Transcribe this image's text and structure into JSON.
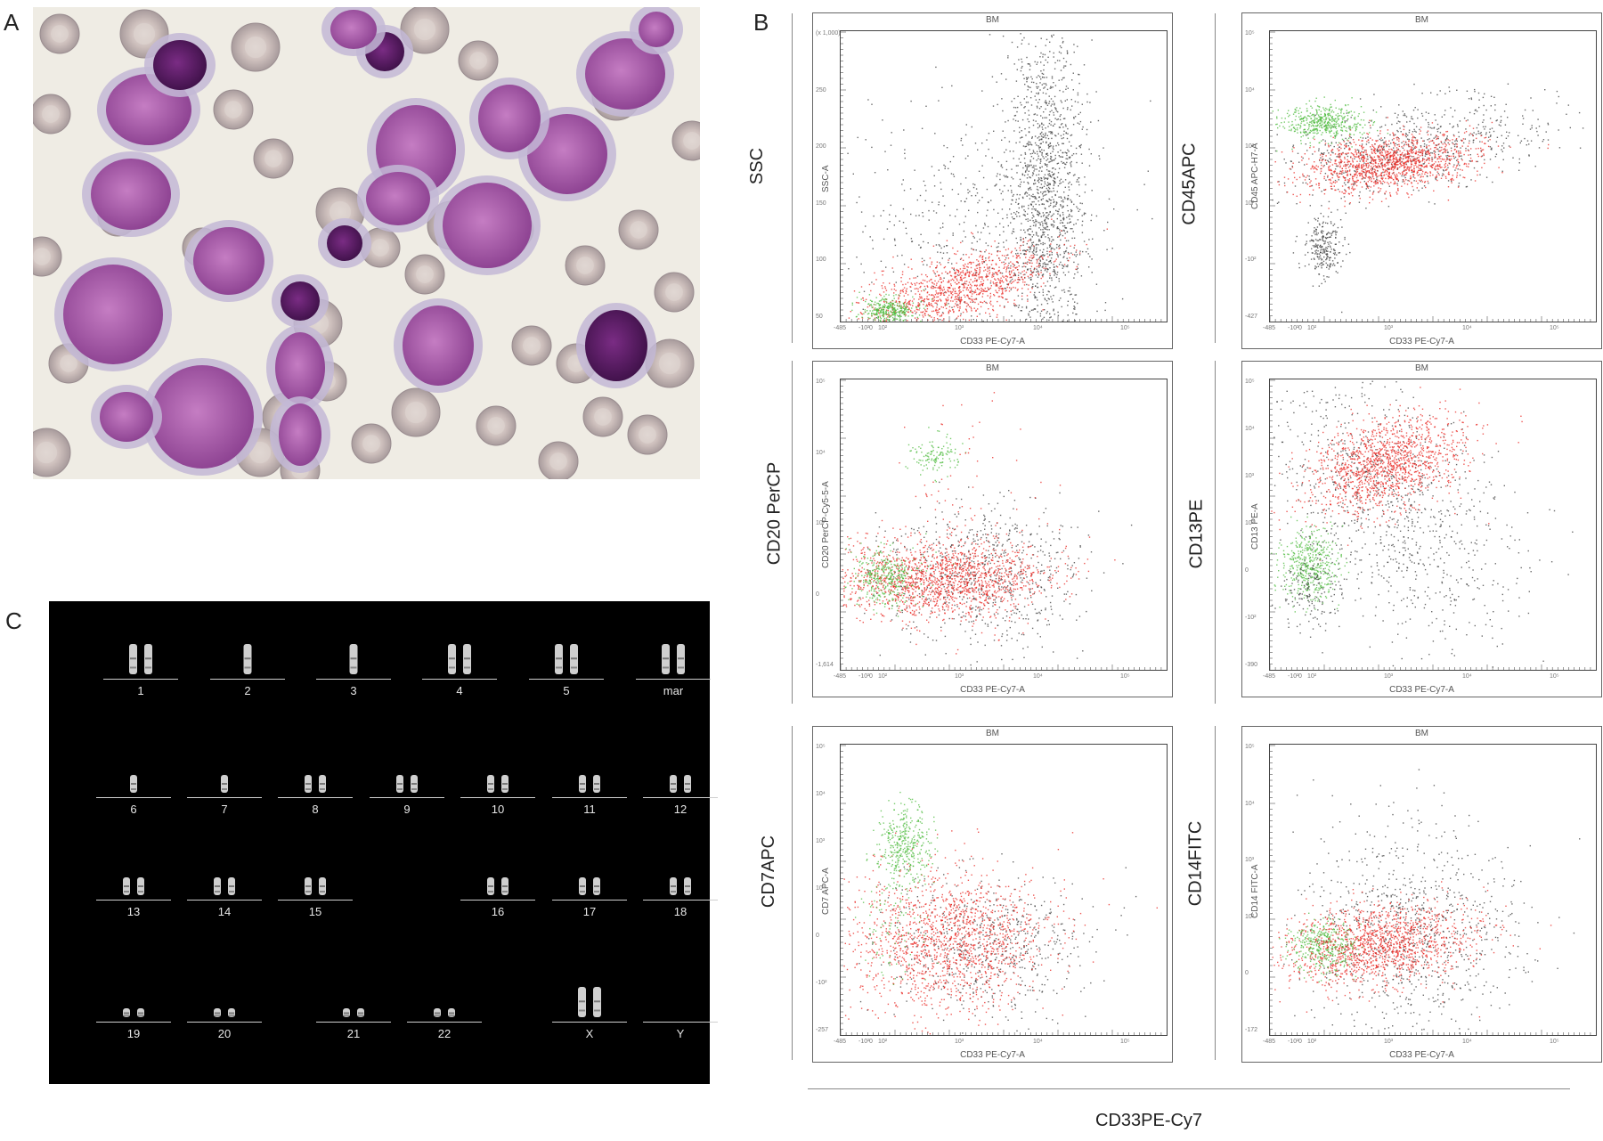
{
  "panels": {
    "a": "A",
    "b": "B",
    "c": "C"
  },
  "flow": {
    "common_x_label": "CD33PE-Cy7",
    "plots": [
      {
        "title": "BM",
        "y_label": "SSC",
        "x_axis_name": "CD33 PE-Cy7-A",
        "y_axis_name": "SSC-A",
        "y_ticks": [
          "(x 1,000)",
          "250",
          "200",
          "150",
          "100",
          "50"
        ],
        "x_ticks": [
          "-485",
          "-10²",
          "0",
          "10²",
          "10³",
          "10⁴",
          "10⁵"
        ]
      },
      {
        "title": "BM",
        "y_label": "CD45APC",
        "x_axis_name": "CD33 PE-Cy7-A",
        "y_axis_name": "CD45 APC-H7-A",
        "y_ticks": [
          "10⁵",
          "10⁴",
          "10³",
          "10²",
          "-10²",
          "-427"
        ],
        "x_ticks": [
          "-485",
          "-10²",
          "0",
          "10²",
          "10³",
          "10⁴",
          "10⁵"
        ]
      },
      {
        "title": "BM",
        "y_label": "CD20 PerCP",
        "x_axis_name": "CD33 PE-Cy7-A",
        "y_axis_name": "CD20 PerCP-Cy5-5-A",
        "y_ticks": [
          "10⁵",
          "10⁴",
          "10³",
          "0",
          "-1,614"
        ],
        "x_ticks": [
          "-485",
          "-10²",
          "0",
          "10²",
          "10³",
          "10⁴",
          "10⁵"
        ]
      },
      {
        "title": "BM",
        "y_label": "CD13PE",
        "x_axis_name": "CD33 PE-Cy7-A",
        "y_axis_name": "CD13 PE-A",
        "y_ticks": [
          "10⁵",
          "10⁴",
          "10³",
          "10²",
          "0",
          "-10²",
          "-390"
        ],
        "x_ticks": [
          "-485",
          "-10²",
          "0",
          "10²",
          "10³",
          "10⁴",
          "10⁵"
        ]
      },
      {
        "title": "BM",
        "y_label": "CD7APC",
        "x_axis_name": "CD33 PE-Cy7-A",
        "y_axis_name": "CD7 APC-A",
        "y_ticks": [
          "10⁵",
          "10⁴",
          "10³",
          "10²",
          "0",
          "-10²",
          "-257"
        ],
        "x_ticks": [
          "-485",
          "-10²",
          "0",
          "10²",
          "10³",
          "10⁴",
          "10⁵"
        ]
      },
      {
        "title": "BM",
        "y_label": "CD14FITC",
        "x_axis_name": "CD33 PE-Cy7-A",
        "y_axis_name": "CD14 FITC-A",
        "y_ticks": [
          "10⁵",
          "10⁴",
          "10³",
          "10²",
          "0",
          "-172"
        ],
        "x_ticks": [
          "-485",
          "-10²",
          "0",
          "10²",
          "10³",
          "10⁴",
          "10⁵"
        ]
      }
    ]
  },
  "karyotype": {
    "rows": [
      [
        "1",
        "2",
        "3",
        "4",
        "5",
        "mar"
      ],
      [
        "6",
        "7",
        "8",
        "9",
        "10",
        "11",
        "12"
      ],
      [
        "13",
        "14",
        "15",
        "16",
        "17",
        "18"
      ],
      [
        "19",
        "20",
        "21",
        "22",
        "X",
        "Y"
      ]
    ]
  },
  "colors": {
    "population_red": "#e8231e",
    "population_green": "#49b93a",
    "population_gray": "#3a3a3a",
    "karyogram_bg": "#000000"
  }
}
